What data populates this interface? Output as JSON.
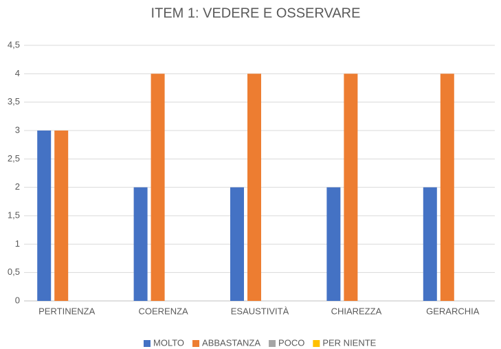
{
  "chart_data": {
    "type": "bar",
    "title": "ITEM 1: VEDERE E OSSERVARE",
    "categories": [
      "PERTINENZA",
      "COERENZA",
      "ESAUSTIVITÀ",
      "CHIAREZZA",
      "GERARCHIA"
    ],
    "series": [
      {
        "name": "MOLTO",
        "color": "#4472c4",
        "values": [
          3,
          2,
          2,
          2,
          2
        ]
      },
      {
        "name": "ABBASTANZA",
        "color": "#ed7d31",
        "values": [
          3,
          4,
          4,
          4,
          4
        ]
      },
      {
        "name": "POCO",
        "color": "#a5a5a5",
        "values": [
          0,
          0,
          0,
          0,
          0
        ]
      },
      {
        "name": "PER NIENTE",
        "color": "#ffc000",
        "values": [
          0,
          0,
          0,
          0,
          0
        ]
      }
    ],
    "ylim": [
      0,
      4.5
    ],
    "yticks": [
      0,
      {
        "value": 0.5,
        "label": "0,5"
      },
      1,
      {
        "value": 1.5,
        "label": "1,5"
      },
      2,
      {
        "value": 2.5,
        "label": "2,5"
      },
      3,
      {
        "value": 3.5,
        "label": "3,5"
      },
      4,
      {
        "value": 4.5,
        "label": "4,5"
      }
    ],
    "grid": true,
    "legend": "bottom"
  }
}
